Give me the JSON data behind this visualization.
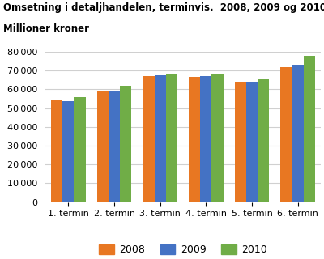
{
  "title_line1": "Omsetning i detaljhandelen, terminvis.  2008, 2009 og 2010.",
  "title_line2": "Millioner kroner",
  "categories": [
    "1. termin",
    "2. termin",
    "3. termin",
    "4. termin",
    "5. termin",
    "6. termin"
  ],
  "series": {
    "2008": [
      54000,
      59500,
      67000,
      66500,
      64000,
      72000
    ],
    "2009": [
      53500,
      59500,
      67500,
      67000,
      64000,
      73000
    ],
    "2010": [
      56000,
      62000,
      68000,
      68000,
      65500,
      78000
    ]
  },
  "colors": {
    "2008": "#E87722",
    "2009": "#4472C4",
    "2010": "#70AD47"
  },
  "ylim": [
    0,
    80000
  ],
  "yticks": [
    0,
    10000,
    20000,
    30000,
    40000,
    50000,
    60000,
    70000,
    80000
  ],
  "legend_labels": [
    "2008",
    "2009",
    "2010"
  ],
  "background_color": "#ffffff",
  "grid_color": "#d0d0d0"
}
